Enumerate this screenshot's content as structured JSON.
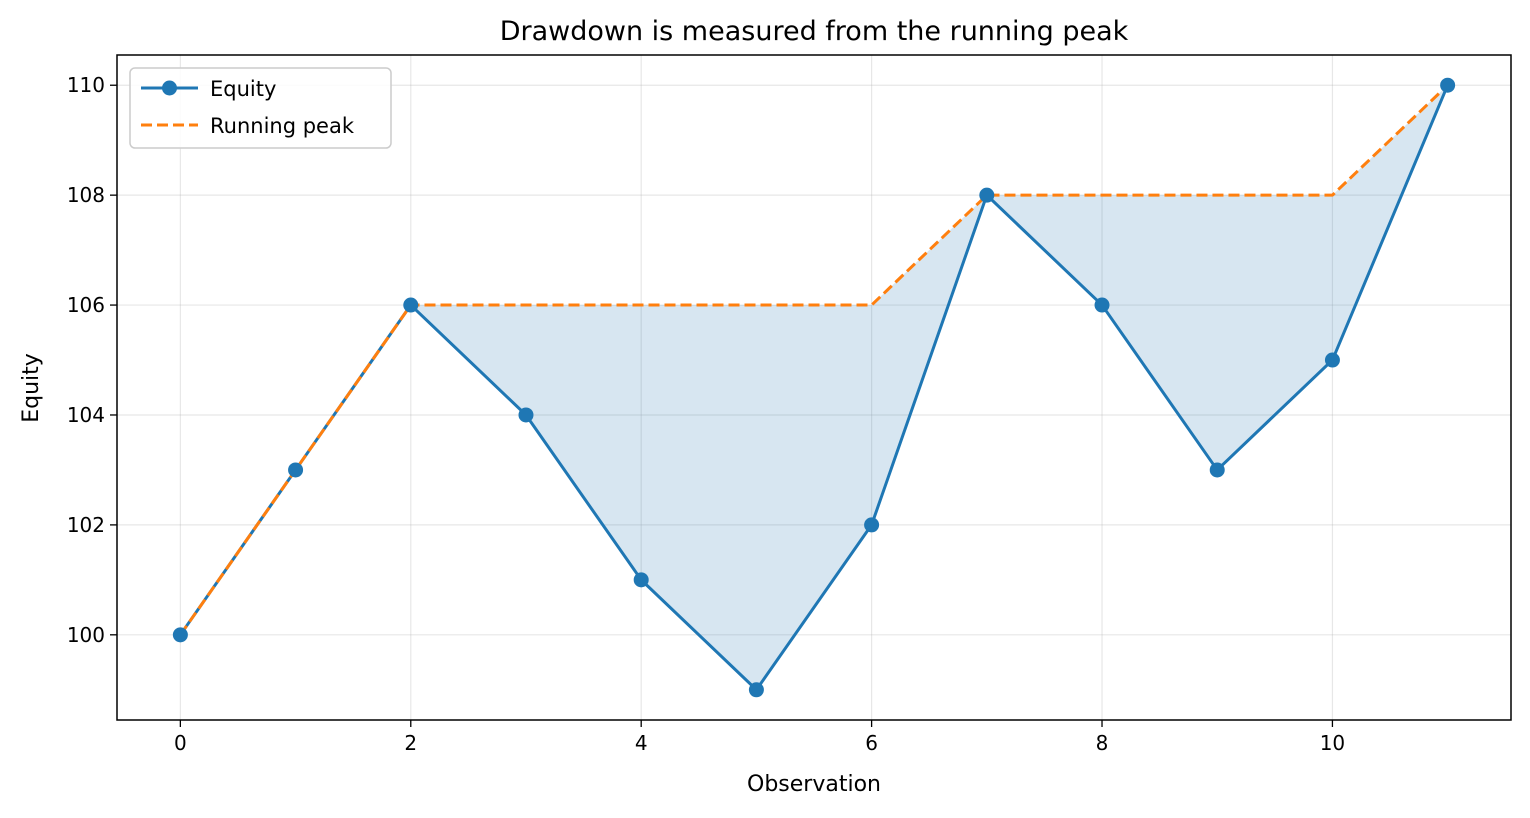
{
  "chart_data": {
    "type": "line",
    "title": "Drawdown is measured from the running peak",
    "xlabel": "Observation",
    "ylabel": "Equity",
    "x": [
      0,
      1,
      2,
      3,
      4,
      5,
      6,
      7,
      8,
      9,
      10,
      11
    ],
    "series": [
      {
        "name": "Equity",
        "values": [
          100,
          103,
          106,
          104,
          101,
          99,
          102,
          108,
          106,
          103,
          105,
          110
        ],
        "color": "#1f77b4",
        "style": "solid",
        "marker": "circle"
      },
      {
        "name": "Running peak",
        "values": [
          100,
          103,
          106,
          106,
          106,
          106,
          106,
          108,
          108,
          108,
          108,
          110
        ],
        "color": "#ff7f0e",
        "style": "dashed",
        "marker": "none"
      }
    ],
    "fill_between": {
      "upper": "Running peak",
      "lower": "Equity",
      "color": "#1f77b4",
      "opacity": 0.18
    },
    "xlim": [
      -0.55,
      11.55
    ],
    "ylim": [
      98.45,
      110.55
    ],
    "xticks": [
      0,
      2,
      4,
      6,
      8,
      10
    ],
    "yticks": [
      100,
      102,
      104,
      106,
      108,
      110
    ],
    "grid": true,
    "legend_position": "top-left"
  }
}
